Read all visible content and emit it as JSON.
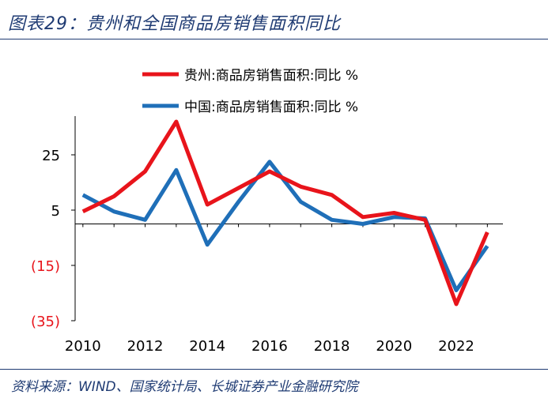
{
  "figure": {
    "title": "图表29：贵州和全国商品房销售面积同比",
    "source": "资料来源：WIND、国家统计局、长城证券产业金融研究院"
  },
  "colors": {
    "guizhou": "#e8141b",
    "china": "#1f6fb8",
    "negative_tick": "#e8141b",
    "title": "#1f3b73"
  },
  "chart_data": {
    "type": "line",
    "title": "贵州和全国商品房销售面积同比",
    "x": [
      2010,
      2011,
      2012,
      2013,
      2014,
      2015,
      2016,
      2017,
      2018,
      2019,
      2020,
      2021,
      2022,
      2023
    ],
    "series": [
      {
        "name": "贵州:商品房销售面积:同比 %",
        "color": "#e8141b",
        "values": [
          4.5,
          10,
          19,
          37,
          7,
          13,
          19,
          13.5,
          10.5,
          2.5,
          4,
          1.5,
          -29,
          -3
        ]
      },
      {
        "name": "中国:商品房销售面积:同比 %",
        "color": "#1f6fb8",
        "values": [
          10.5,
          4.5,
          1.5,
          19.5,
          -7.5,
          8,
          22.5,
          8,
          1.5,
          0,
          2.5,
          2,
          -24,
          -8
        ]
      }
    ],
    "x_ticks": [
      "2010",
      "2012",
      "2014",
      "2016",
      "2018",
      "2020",
      "2022"
    ],
    "y_ticks": [
      {
        "value": 25,
        "label": "25",
        "negative": false
      },
      {
        "value": 5,
        "label": "5",
        "negative": false
      },
      {
        "value": -15,
        "label": "(15)",
        "negative": true
      },
      {
        "value": -35,
        "label": "(35)",
        "negative": true
      }
    ],
    "ylim": [
      -35,
      39
    ],
    "xlim": [
      2009.75,
      2023.5
    ],
    "xlabel": "",
    "ylabel": "",
    "legend_position": "top"
  }
}
